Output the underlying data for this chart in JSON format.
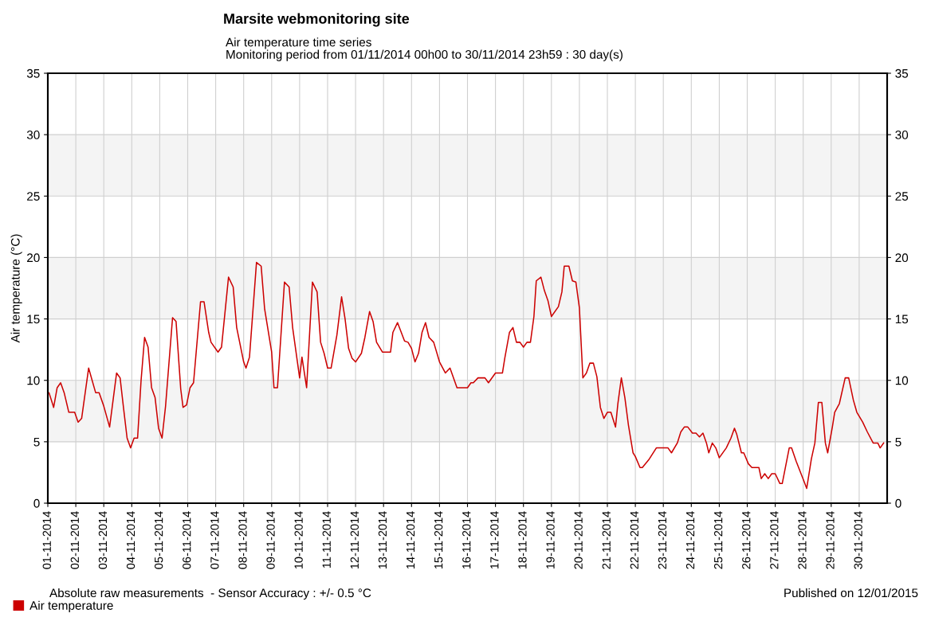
{
  "chart_data": {
    "type": "line",
    "title": "Marsite webmonitoring site",
    "subtitle": "Air temperature time series\nMonitoring period from 01/11/2014 00h00 to 30/11/2014 23h59 : 30 day(s)",
    "ylabel": "Air temperature (°C)",
    "annotations": [
      "Absolute raw measurements  - Sensor Accuracy : +/- 0.5 °C",
      "Published on 12/01/2015"
    ],
    "series": [
      {
        "name": "Air temperature",
        "color": "#cc0000",
        "x": [
          "2014-11-01T00:00",
          "2014-11-01T01:00",
          "2014-11-01T05:00",
          "2014-11-01T08:00",
          "2014-11-01T11:00",
          "2014-11-01T14:00",
          "2014-11-01T18:00",
          "2014-11-01T23:00",
          "2014-11-02T02:00",
          "2014-11-02T05:00",
          "2014-11-02T11:00",
          "2014-11-02T17:00",
          "2014-11-02T20:00",
          "2014-11-03T00:00",
          "2014-11-03T05:00",
          "2014-11-03T11:00",
          "2014-11-03T14:00",
          "2014-11-03T17:00",
          "2014-11-03T20:00",
          "2014-11-03T23:00",
          "2014-11-04T02:00",
          "2014-11-04T05:00",
          "2014-11-04T08:00",
          "2014-11-04T11:00",
          "2014-11-04T14:00",
          "2014-11-04T17:00",
          "2014-11-04T20:00",
          "2014-11-04T23:00",
          "2014-11-05T02:00",
          "2014-11-05T05:00",
          "2014-11-05T11:00",
          "2014-11-05T14:00",
          "2014-11-05T18:00",
          "2014-11-05T20:00",
          "2014-11-05T23:00",
          "2014-11-06T02:00",
          "2014-11-06T05:00",
          "2014-11-06T11:00",
          "2014-11-06T14:00",
          "2014-11-06T18:00",
          "2014-11-06T20:00",
          "2014-11-07T02:00",
          "2014-11-07T05:00",
          "2014-11-07T11:00",
          "2014-11-07T15:00",
          "2014-11-07T18:00",
          "2014-11-08T00:00",
          "2014-11-08T02:00",
          "2014-11-08T05:00",
          "2014-11-08T11:00",
          "2014-11-08T15:00",
          "2014-11-08T18:00",
          "2014-11-09T00:00",
          "2014-11-09T02:00",
          "2014-11-09T05:00",
          "2014-11-09T11:00",
          "2014-11-09T15:00",
          "2014-11-09T18:00",
          "2014-11-10T00:00",
          "2014-11-10T02:00",
          "2014-11-10T06:00",
          "2014-11-10T11:00",
          "2014-11-10T15:00",
          "2014-11-10T18:00",
          "2014-11-10T21:00",
          "2014-11-11T00:00",
          "2014-11-11T03:00",
          "2014-11-11T08:00",
          "2014-11-11T12:00",
          "2014-11-11T15:00",
          "2014-11-11T18:00",
          "2014-11-11T21:00",
          "2014-11-12T00:00",
          "2014-11-12T05:00",
          "2014-11-12T08:00",
          "2014-11-12T12:00",
          "2014-11-12T15:00",
          "2014-11-12T18:00",
          "2014-11-12T23:00",
          "2014-11-13T06:00",
          "2014-11-13T08:00",
          "2014-11-13T12:00",
          "2014-11-13T18:00",
          "2014-11-13T21:00",
          "2014-11-14T00:00",
          "2014-11-14T03:00",
          "2014-11-14T06:00",
          "2014-11-14T09:00",
          "2014-11-14T12:00",
          "2014-11-14T15:00",
          "2014-11-14T19:00",
          "2014-11-15T00:00",
          "2014-11-15T05:00",
          "2014-11-15T09:00",
          "2014-11-15T15:00",
          "2014-11-16T00:00",
          "2014-11-16T03:00",
          "2014-11-16T05:00",
          "2014-11-16T09:00",
          "2014-11-16T15:00",
          "2014-11-16T18:00",
          "2014-11-17T00:00",
          "2014-11-17T06:00",
          "2014-11-17T08:00",
          "2014-11-17T12:00",
          "2014-11-17T15:00",
          "2014-11-17T18:00",
          "2014-11-17T21:00",
          "2014-11-18T00:00",
          "2014-11-18T03:00",
          "2014-11-18T06:00",
          "2014-11-18T09:00",
          "2014-11-18T11:00",
          "2014-11-18T15:00",
          "2014-11-18T18:00",
          "2014-11-18T21:00",
          "2014-11-19T00:00",
          "2014-11-19T06:00",
          "2014-11-19T09:00",
          "2014-11-19T11:00",
          "2014-11-19T15:00",
          "2014-11-19T18:00",
          "2014-11-19T21:00",
          "2014-11-20T00:00",
          "2014-11-20T03:00",
          "2014-11-20T06:00",
          "2014-11-20T09:00",
          "2014-11-20T12:00",
          "2014-11-20T15:00",
          "2014-11-20T18:00",
          "2014-11-20T21:00",
          "2014-11-21T00:00",
          "2014-11-21T03:00",
          "2014-11-21T07:00",
          "2014-11-21T09:00",
          "2014-11-21T12:00",
          "2014-11-21T15:00",
          "2014-11-21T18:00",
          "2014-11-21T22:00",
          "2014-11-22T00:00",
          "2014-11-22T04:00",
          "2014-11-22T06:00",
          "2014-11-22T12:00",
          "2014-11-22T18:00",
          "2014-11-23T04:00",
          "2014-11-23T07:00",
          "2014-11-23T12:00",
          "2014-11-23T15:00",
          "2014-11-23T18:00",
          "2014-11-23T21:00",
          "2014-11-24T01:00",
          "2014-11-24T04:00",
          "2014-11-24T07:00",
          "2014-11-24T10:00",
          "2014-11-24T13:00",
          "2014-11-24T15:00",
          "2014-11-24T18:00",
          "2014-11-24T21:00",
          "2014-11-25T00:00",
          "2014-11-25T06:00",
          "2014-11-25T10:00",
          "2014-11-25T13:00",
          "2014-11-25T15:00",
          "2014-11-25T19:00",
          "2014-11-25T21:00",
          "2014-11-26T01:00",
          "2014-11-26T04:00",
          "2014-11-26T10:00",
          "2014-11-26T12:00",
          "2014-11-26T15:00",
          "2014-11-26T18:00",
          "2014-11-26T21:00",
          "2014-11-27T00:00",
          "2014-11-27T04:00",
          "2014-11-27T06:00",
          "2014-11-27T12:00",
          "2014-11-27T14:00",
          "2014-11-27T18:00",
          "2014-11-28T01:00",
          "2014-11-28T03:00",
          "2014-11-28T07:00",
          "2014-11-28T10:00",
          "2014-11-28T13:00",
          "2014-11-28T16:00",
          "2014-11-28T19:00",
          "2014-11-28T21:00",
          "2014-11-29T01:00",
          "2014-11-29T03:00",
          "2014-11-29T07:00",
          "2014-11-29T12:00",
          "2014-11-29T15:00",
          "2014-11-29T19:00",
          "2014-11-29T22:00",
          "2014-11-30T03:00",
          "2014-11-30T07:00",
          "2014-11-30T12:00",
          "2014-11-30T16:00",
          "2014-11-30T18:00",
          "2014-11-30T21:00"
        ],
        "values": [
          9.0,
          9.0,
          7.8,
          9.4,
          9.8,
          9.0,
          7.4,
          7.4,
          6.6,
          6.9,
          11.0,
          9.0,
          9.0,
          7.9,
          6.2,
          10.6,
          10.2,
          7.7,
          5.3,
          4.5,
          5.3,
          5.3,
          10.0,
          13.5,
          12.7,
          9.4,
          8.6,
          6.1,
          5.3,
          7.9,
          15.1,
          14.8,
          9.3,
          7.8,
          8.0,
          9.4,
          9.8,
          16.4,
          16.4,
          13.9,
          13.1,
          12.3,
          12.7,
          18.4,
          17.6,
          14.3,
          11.5,
          11.0,
          11.9,
          19.6,
          19.3,
          15.8,
          12.3,
          9.4,
          9.4,
          18.0,
          17.6,
          14.3,
          10.2,
          11.9,
          9.4,
          18.0,
          17.2,
          13.1,
          12.2,
          11.0,
          11.0,
          13.7,
          16.8,
          15.0,
          12.6,
          11.8,
          11.5,
          12.2,
          13.5,
          15.6,
          14.8,
          13.1,
          12.3,
          12.3,
          13.9,
          14.7,
          13.2,
          13.1,
          12.6,
          11.5,
          12.2,
          13.9,
          14.7,
          13.5,
          13.1,
          11.5,
          10.6,
          11.0,
          9.4,
          9.4,
          9.8,
          9.8,
          10.2,
          10.2,
          9.8,
          10.6,
          10.6,
          11.8,
          13.9,
          14.3,
          13.1,
          13.1,
          12.7,
          13.1,
          13.1,
          15.2,
          18.1,
          18.4,
          17.3,
          16.5,
          15.2,
          16.0,
          17.2,
          19.3,
          19.3,
          18.1,
          18.0,
          15.9,
          10.2,
          10.6,
          11.4,
          11.4,
          10.3,
          7.8,
          6.9,
          7.4,
          7.4,
          6.2,
          8.1,
          10.2,
          8.6,
          6.4,
          4.1,
          3.8,
          2.9,
          2.9,
          3.6,
          4.5,
          4.5,
          4.1,
          4.9,
          5.8,
          6.2,
          6.2,
          5.7,
          5.7,
          5.4,
          5.7,
          4.9,
          4.1,
          4.9,
          4.5,
          3.7,
          4.5,
          5.3,
          6.1,
          5.6,
          4.1,
          4.1,
          3.2,
          2.9,
          2.9,
          2.0,
          2.4,
          2.0,
          2.4,
          2.4,
          1.6,
          1.6,
          4.5,
          4.5,
          3.4,
          1.7,
          1.2,
          3.6,
          4.9,
          8.2,
          8.2,
          4.9,
          4.1,
          6.2,
          7.4,
          8.1,
          10.2,
          10.2,
          8.4,
          7.4,
          6.6,
          5.8,
          4.9,
          4.9,
          4.5,
          4.9
        ]
      }
    ],
    "xlim": [
      "2014-11-01",
      "2014-12-01"
    ],
    "xticks": [
      {
        "value": "2014-11-01",
        "label": "01-11-2014"
      },
      {
        "value": "2014-11-02",
        "label": "02-11-2014"
      },
      {
        "value": "2014-11-03",
        "label": "03-11-2014"
      },
      {
        "value": "2014-11-04",
        "label": "04-11-2014"
      },
      {
        "value": "2014-11-05",
        "label": "05-11-2014"
      },
      {
        "value": "2014-11-06",
        "label": "06-11-2014"
      },
      {
        "value": "2014-11-07",
        "label": "07-11-2014"
      },
      {
        "value": "2014-11-08",
        "label": "08-11-2014"
      },
      {
        "value": "2014-11-09",
        "label": "09-11-2014"
      },
      {
        "value": "2014-11-10",
        "label": "10-11-2014"
      },
      {
        "value": "2014-11-11",
        "label": "11-11-2014"
      },
      {
        "value": "2014-11-12",
        "label": "12-11-2014"
      },
      {
        "value": "2014-11-13",
        "label": "13-11-2014"
      },
      {
        "value": "2014-11-14",
        "label": "14-11-2014"
      },
      {
        "value": "2014-11-15",
        "label": "15-11-2014"
      },
      {
        "value": "2014-11-16",
        "label": "16-11-2014"
      },
      {
        "value": "2014-11-17",
        "label": "17-11-2014"
      },
      {
        "value": "2014-11-18",
        "label": "18-11-2014"
      },
      {
        "value": "2014-11-19",
        "label": "19-11-2014"
      },
      {
        "value": "2014-11-20",
        "label": "20-11-2014"
      },
      {
        "value": "2014-11-21",
        "label": "21-11-2014"
      },
      {
        "value": "2014-11-22",
        "label": "22-11-2014"
      },
      {
        "value": "2014-11-23",
        "label": "23-11-2014"
      },
      {
        "value": "2014-11-24",
        "label": "24-11-2014"
      },
      {
        "value": "2014-11-25",
        "label": "25-11-2014"
      },
      {
        "value": "2014-11-26",
        "label": "26-11-2014"
      },
      {
        "value": "2014-11-27",
        "label": "27-11-2014"
      },
      {
        "value": "2014-11-28",
        "label": "28-11-2014"
      },
      {
        "value": "2014-11-29",
        "label": "29-11-2014"
      },
      {
        "value": "2014-11-30",
        "label": "30-11-2014"
      }
    ],
    "ylim": [
      0,
      35
    ],
    "yticks": [
      0,
      5,
      10,
      15,
      20,
      25,
      30,
      35
    ],
    "y2lim": [
      0,
      35
    ],
    "y2ticks": [
      0,
      5,
      10,
      15,
      20,
      25,
      30,
      35
    ],
    "bands": [
      {
        "axis": "y",
        "from": 5,
        "to": 10,
        "color": "#f4f4f4"
      },
      {
        "axis": "y",
        "from": 15,
        "to": 20,
        "color": "#f4f4f4"
      },
      {
        "axis": "y",
        "from": 25,
        "to": 30,
        "color": "#f4f4f4"
      }
    ],
    "grid": true,
    "legend": "bottom left",
    "marker": "none",
    "line_style": "solid"
  }
}
